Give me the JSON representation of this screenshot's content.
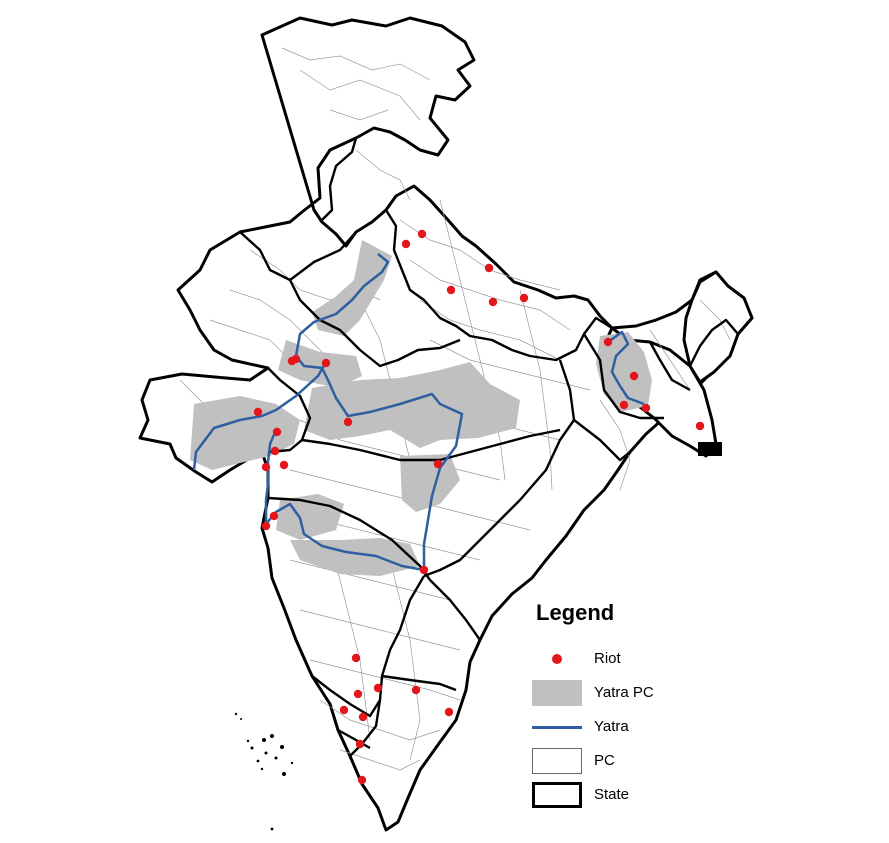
{
  "legend": {
    "title": "Legend",
    "items": [
      {
        "key": "riot",
        "label": "Riot"
      },
      {
        "key": "yatra_pc",
        "label": "Yatra PC"
      },
      {
        "key": "yatra",
        "label": "Yatra"
      },
      {
        "key": "pc",
        "label": "PC"
      },
      {
        "key": "state",
        "label": "State"
      }
    ]
  },
  "colors": {
    "riot": "#e3161c",
    "yatra_pc": "#c0c0c0",
    "yatra": "#2f5fa0",
    "state_border": "#000000",
    "pc_border": "#888888"
  },
  "riot_count": 33
}
